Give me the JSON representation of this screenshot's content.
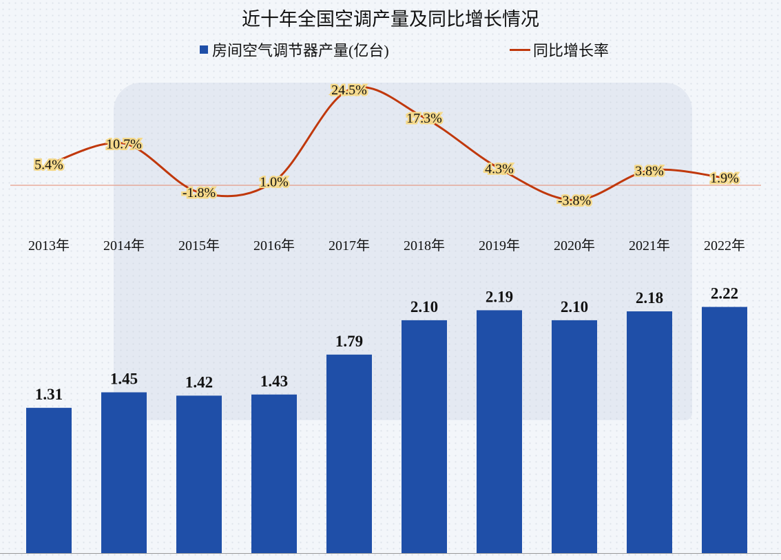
{
  "chart_data": {
    "type": "bar+line",
    "title": "近十年全国空调产量及同比增长情况",
    "categories": [
      "2013年",
      "2014年",
      "2015年",
      "2016年",
      "2017年",
      "2018年",
      "2019年",
      "2020年",
      "2021年",
      "2022年"
    ],
    "series": [
      {
        "name": "房间空气调节器产量(亿台)",
        "type": "bar",
        "color": "#1f4fa8",
        "values": [
          1.31,
          1.45,
          1.42,
          1.43,
          1.79,
          2.1,
          2.19,
          2.1,
          2.18,
          2.22
        ],
        "labels": [
          "1.31",
          "1.45",
          "1.42",
          "1.43",
          "1.79",
          "2.10",
          "2.19",
          "2.10",
          "2.18",
          "2.22"
        ]
      },
      {
        "name": "同比增长率",
        "type": "line",
        "smooth": true,
        "color": "#c0380c",
        "values": [
          5.4,
          10.7,
          -1.8,
          1.0,
          24.5,
          17.3,
          4.3,
          -3.8,
          3.8,
          1.9
        ],
        "labels": [
          "5.4%",
          "10.7%",
          "-1.8%",
          "1.0%",
          "24.5%",
          "17.3%",
          "4.3%",
          "-3.8%",
          "3.8%",
          "1.9%"
        ]
      }
    ],
    "legend": "top",
    "grid": false
  }
}
